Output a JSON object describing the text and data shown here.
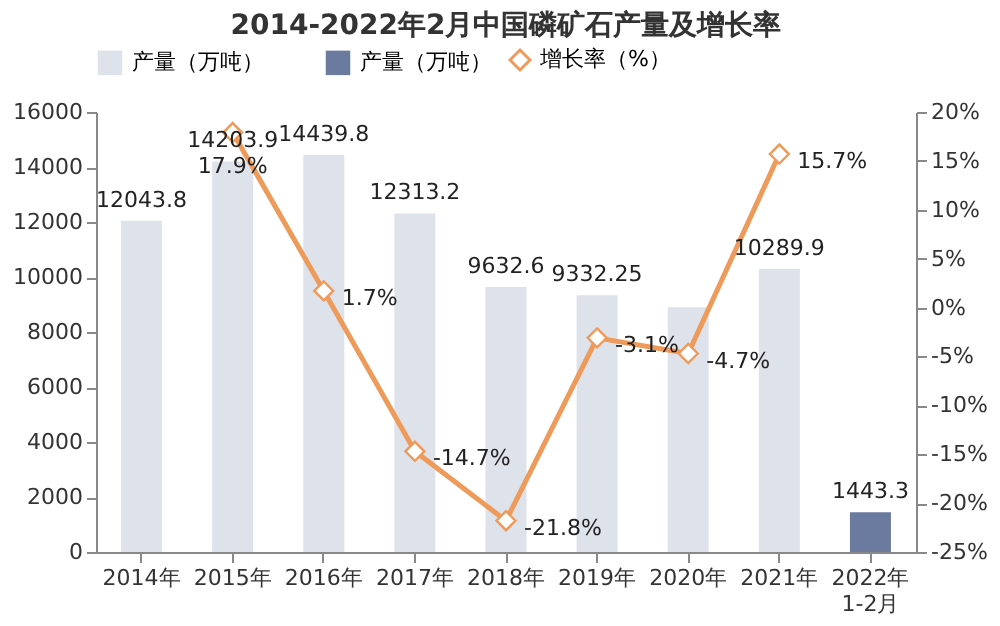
{
  "chart_data": {
    "type": "bar",
    "title": "2014-2022年2月中国磷矿石产量及增长率",
    "categories": [
      "2014年",
      "2015年",
      "2016年",
      "2017年",
      "2018年",
      "2019年",
      "2020年",
      "2021年",
      "2022年1-2月"
    ],
    "series": [
      {
        "name": "产量（万吨）",
        "color": "#dee2ea",
        "values": [
          12043.8,
          14203.9,
          14439.8,
          12313.2,
          9632.6,
          9332.25,
          8900,
          10289.9,
          null
        ],
        "value_labels": [
          "12043.8",
          "14203.9",
          "14439.8",
          "12313.2",
          "9632.6",
          "9332.25",
          null,
          "10289.9",
          null
        ]
      },
      {
        "name": "产量（万吨）",
        "color": "#6b7a9f",
        "values": [
          null,
          null,
          null,
          null,
          null,
          null,
          null,
          null,
          1443.3
        ],
        "value_labels": [
          null,
          null,
          null,
          null,
          null,
          null,
          null,
          null,
          "1443.3"
        ]
      },
      {
        "name": "增长率（%）",
        "type": "line",
        "axis": "y2",
        "color": "#ed9a5b",
        "marker": "diamond",
        "values": [
          null,
          17.9,
          1.7,
          -14.7,
          -21.8,
          -3.1,
          -4.7,
          15.7,
          null
        ],
        "value_labels": [
          null,
          "17.9%",
          "1.7%",
          "-14.7%",
          "-21.8%",
          "-3.1%",
          "-4.7%",
          "15.7%",
          null
        ]
      }
    ],
    "ylim": [
      0,
      16000
    ],
    "yticks": [
      0,
      2000,
      4000,
      6000,
      8000,
      10000,
      12000,
      14000,
      16000
    ],
    "y2lim": [
      -25,
      20
    ],
    "y2ticks": [
      {
        "value": -25,
        "label": "-25%"
      },
      {
        "value": -20,
        "label": "-20%"
      },
      {
        "value": -15,
        "label": "-15%"
      },
      {
        "value": -10,
        "label": "-10%"
      },
      {
        "value": -5,
        "label": "-5%"
      },
      {
        "value": 0,
        "label": "0%"
      },
      {
        "value": 5,
        "label": "5%"
      },
      {
        "value": 10,
        "label": "10%"
      },
      {
        "value": 15,
        "label": "15%"
      },
      {
        "value": 20,
        "label": "20%"
      }
    ],
    "legend": "top",
    "grid": false
  }
}
